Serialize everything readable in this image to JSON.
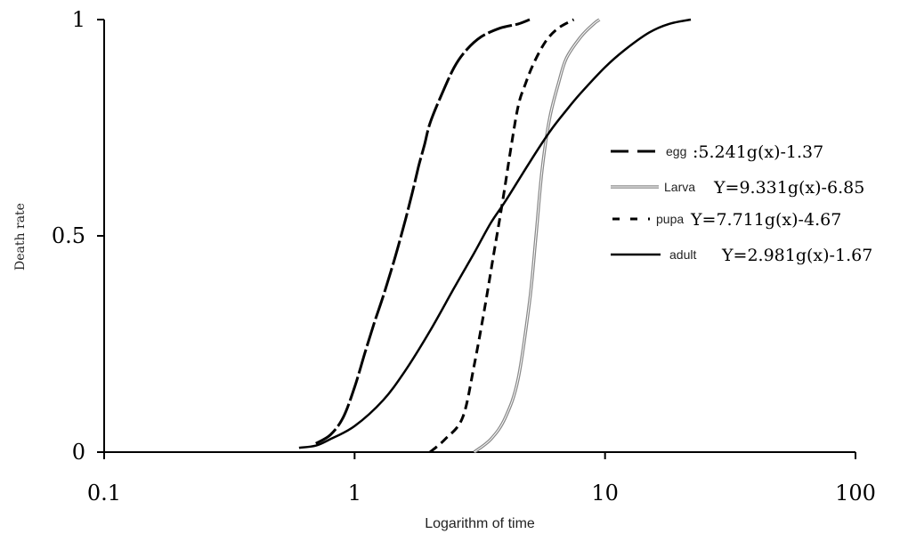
{
  "chart_data": {
    "type": "line",
    "title": "",
    "xlabel": "Logarithm of time",
    "ylabel": "Death rate",
    "x_scale": "log",
    "xlim": [
      0.1,
      100
    ],
    "ylim": [
      0,
      1
    ],
    "x_ticks": [
      "0.1",
      "1",
      "10",
      "100"
    ],
    "y_ticks": [
      "0",
      "0.5",
      "1"
    ],
    "grid": false,
    "legend_position": "right",
    "series": [
      {
        "name": "egg",
        "equation": ":5.241g(x)-1.37",
        "style": "long-dash",
        "color": "#000000",
        "points": [
          [
            0.7,
            0.02
          ],
          [
            0.8,
            0.04
          ],
          [
            0.9,
            0.08
          ],
          [
            1.0,
            0.15
          ],
          [
            1.1,
            0.23
          ],
          [
            1.2,
            0.3
          ],
          [
            1.3,
            0.36
          ],
          [
            1.4,
            0.42
          ],
          [
            1.5,
            0.48
          ],
          [
            1.6,
            0.54
          ],
          [
            1.7,
            0.6
          ],
          [
            1.8,
            0.66
          ],
          [
            1.9,
            0.71
          ],
          [
            2.0,
            0.76
          ],
          [
            2.2,
            0.82
          ],
          [
            2.5,
            0.89
          ],
          [
            2.8,
            0.93
          ],
          [
            3.2,
            0.96
          ],
          [
            3.8,
            0.98
          ],
          [
            4.5,
            0.99
          ],
          [
            5.0,
            1.0
          ]
        ]
      },
      {
        "name": "Larva",
        "equation": "Y=9.331g(x)-6.85",
        "style": "gray-double",
        "color": "#888888",
        "points": [
          [
            3.0,
            0.0
          ],
          [
            3.5,
            0.03
          ],
          [
            4.0,
            0.08
          ],
          [
            4.5,
            0.17
          ],
          [
            5.0,
            0.35
          ],
          [
            5.3,
            0.5
          ],
          [
            5.6,
            0.65
          ],
          [
            6.0,
            0.77
          ],
          [
            6.5,
            0.85
          ],
          [
            7.0,
            0.91
          ],
          [
            8.0,
            0.96
          ],
          [
            9.0,
            0.99
          ],
          [
            9.5,
            1.0
          ]
        ]
      },
      {
        "name": "pupa",
        "equation": "Y=7.711g(x)-4.67",
        "style": "short-dash",
        "color": "#000000",
        "points": [
          [
            2.0,
            0.0
          ],
          [
            2.3,
            0.03
          ],
          [
            2.7,
            0.08
          ],
          [
            3.0,
            0.2
          ],
          [
            3.3,
            0.33
          ],
          [
            3.6,
            0.46
          ],
          [
            3.9,
            0.58
          ],
          [
            4.2,
            0.7
          ],
          [
            4.5,
            0.8
          ],
          [
            4.8,
            0.85
          ],
          [
            5.2,
            0.9
          ],
          [
            5.8,
            0.95
          ],
          [
            6.5,
            0.98
          ],
          [
            7.5,
            1.0
          ]
        ]
      },
      {
        "name": "adult",
        "equation": "Y=2.981g(x)-1.67",
        "style": "solid",
        "color": "#000000",
        "points": [
          [
            0.6,
            0.01
          ],
          [
            0.7,
            0.015
          ],
          [
            0.8,
            0.03
          ],
          [
            1.0,
            0.06
          ],
          [
            1.3,
            0.12
          ],
          [
            1.6,
            0.19
          ],
          [
            2.0,
            0.28
          ],
          [
            2.5,
            0.38
          ],
          [
            3.0,
            0.46
          ],
          [
            3.5,
            0.53
          ],
          [
            4.0,
            0.58
          ],
          [
            5.0,
            0.67
          ],
          [
            6.0,
            0.74
          ],
          [
            7.0,
            0.79
          ],
          [
            8.0,
            0.83
          ],
          [
            10.0,
            0.89
          ],
          [
            12.0,
            0.93
          ],
          [
            15.0,
            0.97
          ],
          [
            18.0,
            0.99
          ],
          [
            22.0,
            1.0
          ]
        ]
      }
    ]
  }
}
